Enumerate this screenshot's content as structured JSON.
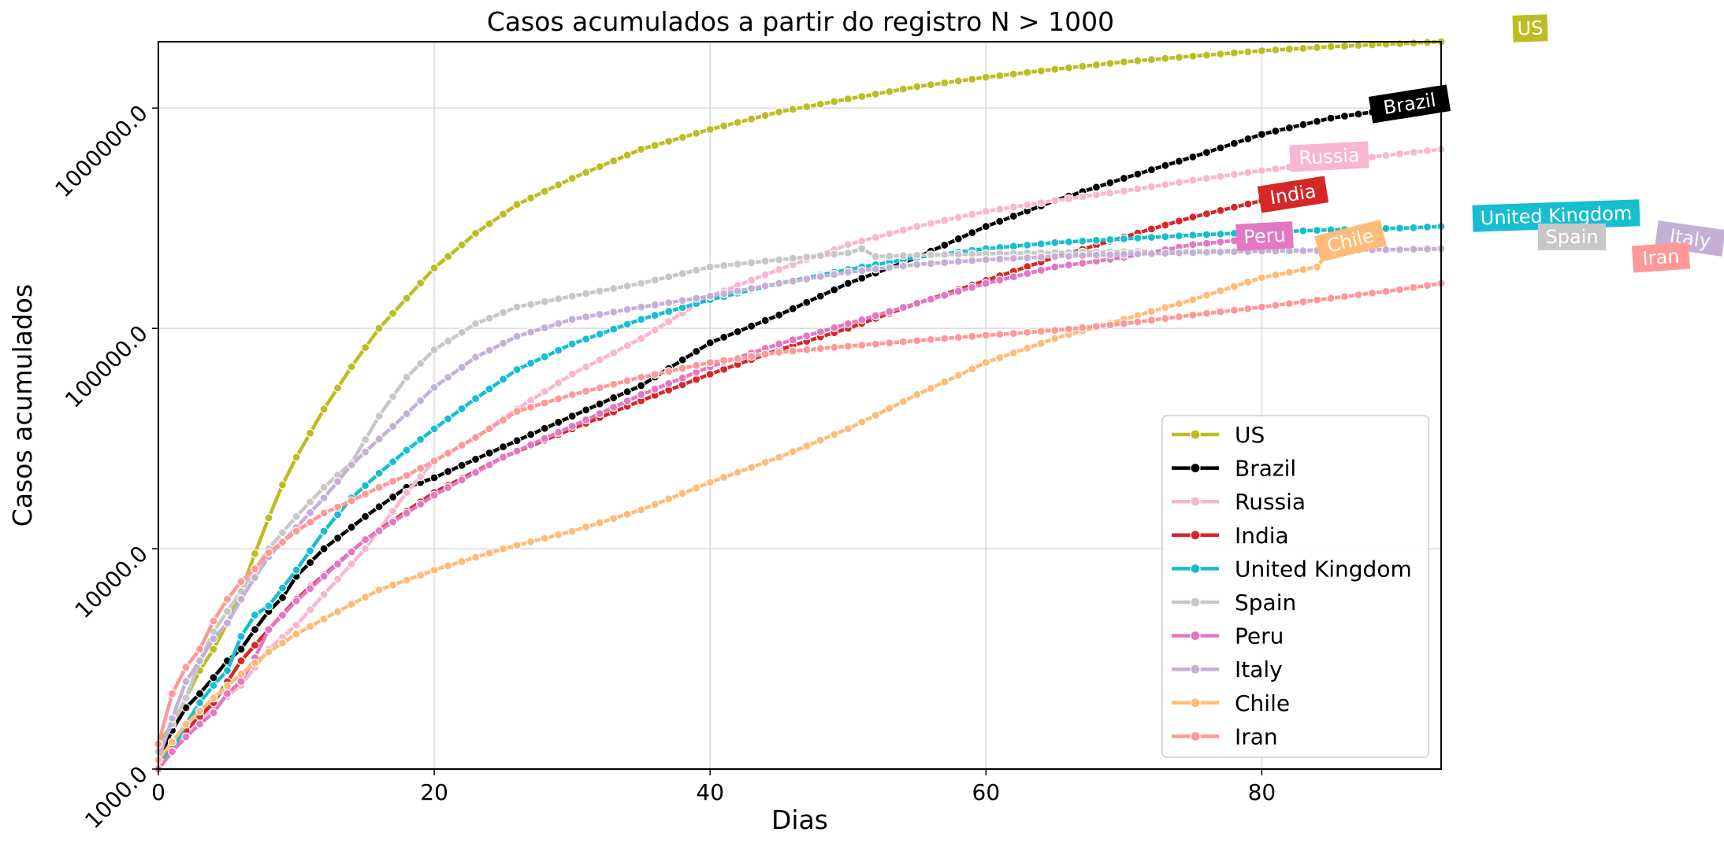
{
  "chart_data": {
    "type": "line",
    "title": "Casos acumulados a partir do registro N > 1000",
    "xlabel": "Dias",
    "ylabel": "Casos acumulados",
    "x_scale": "linear",
    "y_scale": "log",
    "xlim": [
      0,
      93
    ],
    "ylim": [
      1000,
      2000000
    ],
    "x_ticks": [
      0,
      20,
      40,
      60,
      80
    ],
    "x_tick_labels": [
      "0",
      "20",
      "40",
      "60",
      "80"
    ],
    "y_ticks": [
      1000,
      10000,
      100000,
      1000000
    ],
    "y_tick_labels": [
      "1000.0",
      "10000.0",
      "100000.0",
      "1000000.0"
    ],
    "grid": true,
    "legend_position": "lower-right",
    "series": [
      {
        "name": "US",
        "color": "#bcbd22",
        "tag": "US",
        "x": [
          0,
          1,
          2,
          3,
          4,
          5,
          6,
          7,
          8,
          9,
          10,
          12,
          14,
          16,
          18,
          20,
          23,
          26,
          30,
          35,
          40,
          45,
          50,
          55,
          60,
          65,
          70,
          75,
          80,
          85,
          90,
          93
        ],
        "y": [
          1300,
          1600,
          2100,
          2800,
          3500,
          4600,
          6400,
          9500,
          13800,
          19500,
          26000,
          43000,
          67000,
          100000,
          137000,
          188000,
          270000,
          365000,
          480000,
          650000,
          800000,
          960000,
          1100000,
          1250000,
          1380000,
          1500000,
          1620000,
          1720000,
          1820000,
          1900000,
          1960000,
          2000000
        ]
      },
      {
        "name": "Brazil",
        "color": "#000000",
        "tag": "Brazil",
        "x": [
          0,
          1,
          2,
          3,
          4,
          5,
          6,
          7,
          8,
          9,
          10,
          12,
          15,
          18,
          20,
          25,
          30,
          35,
          40,
          45,
          50,
          55,
          60,
          65,
          70,
          75,
          80,
          85,
          90,
          93
        ],
        "y": [
          1100,
          1500,
          1900,
          2200,
          2600,
          3100,
          3500,
          4300,
          5200,
          6000,
          7500,
          10000,
          14000,
          19000,
          21000,
          29000,
          40000,
          55000,
          86000,
          115000,
          160000,
          210000,
          290000,
          380000,
          480000,
          600000,
          760000,
          900000,
          1000000,
          1050000
        ]
      },
      {
        "name": "Russia",
        "color": "#f7b6d2",
        "tag": "Russia",
        "x": [
          0,
          2,
          4,
          6,
          8,
          10,
          12,
          15,
          18,
          20,
          23,
          26,
          30,
          35,
          40,
          45,
          50,
          55,
          60,
          65,
          70,
          75,
          80,
          85,
          90,
          93
        ],
        "y": [
          1100,
          1500,
          1900,
          2400,
          3500,
          4500,
          6200,
          10000,
          18000,
          25000,
          32000,
          43000,
          62000,
          90000,
          140000,
          185000,
          240000,
          290000,
          340000,
          380000,
          420000,
          470000,
          520000,
          570000,
          620000,
          650000
        ]
      },
      {
        "name": "India",
        "color": "#d62728",
        "tag": "India",
        "x": [
          0,
          2,
          4,
          6,
          8,
          10,
          12,
          15,
          18,
          20,
          25,
          30,
          35,
          40,
          45,
          50,
          55,
          60,
          65,
          70,
          75,
          80,
          82
        ],
        "y": [
          1100,
          1500,
          2000,
          3100,
          4300,
          5900,
          7600,
          11000,
          14800,
          18000,
          26000,
          35000,
          47000,
          62000,
          80000,
          100000,
          130000,
          165000,
          210000,
          260000,
          320000,
          380000,
          400000
        ]
      },
      {
        "name": "United Kingdom",
        "color": "#17becf",
        "tag": "United Kingdom",
        "x": [
          0,
          1,
          2,
          3,
          4,
          5,
          6,
          7,
          8,
          10,
          12,
          14,
          16,
          18,
          20,
          23,
          26,
          30,
          35,
          40,
          45,
          50,
          55,
          60,
          65,
          70,
          75,
          80,
          85,
          90,
          93
        ],
        "y": [
          1100,
          1200,
          1600,
          2000,
          2400,
          2800,
          4000,
          5000,
          5500,
          8000,
          12000,
          17000,
          22000,
          28000,
          35000,
          48000,
          65000,
          85000,
          110000,
          135000,
          160000,
          185000,
          210000,
          230000,
          245000,
          255000,
          265000,
          273000,
          280000,
          285000,
          290000
        ]
      },
      {
        "name": "Spain",
        "color": "#c7c7c7",
        "tag": "Spain",
        "x": [
          0,
          1,
          2,
          3,
          4,
          5,
          6,
          7,
          8,
          10,
          12,
          14,
          16,
          18,
          20,
          23,
          26,
          30,
          35,
          40,
          45,
          50,
          51,
          52,
          55,
          60,
          65,
          70,
          75,
          80,
          85,
          90,
          93
        ],
        "y": [
          1200,
          1600,
          2100,
          3100,
          4200,
          5200,
          6400,
          8000,
          10000,
          14000,
          19000,
          24500,
          40000,
          60000,
          80000,
          105000,
          125000,
          140000,
          160000,
          190000,
          205000,
          220000,
          230000,
          212000,
          215000,
          218000,
          221000,
          223000,
          225000,
          226000,
          227000,
          228000,
          229000
        ]
      },
      {
        "name": "Peru",
        "color": "#e377c2",
        "tag": "Peru",
        "x": [
          0,
          1,
          2,
          3,
          4,
          5,
          6,
          7,
          8,
          10,
          12,
          15,
          18,
          20,
          25,
          30,
          35,
          40,
          45,
          50,
          55,
          60,
          65,
          70,
          75,
          78
        ],
        "y": [
          1000,
          1200,
          1400,
          1600,
          1800,
          2200,
          2500,
          3200,
          4300,
          5800,
          7500,
          11000,
          14500,
          17500,
          26000,
          36000,
          50000,
          67000,
          85000,
          105000,
          130000,
          160000,
          190000,
          210000,
          240000,
          250000
        ]
      },
      {
        "name": "Italy",
        "color": "#c5b0d5",
        "tag": "Italy",
        "x": [
          0,
          1,
          2,
          3,
          4,
          5,
          6,
          7,
          8,
          10,
          12,
          14,
          16,
          18,
          20,
          23,
          26,
          30,
          35,
          40,
          45,
          50,
          55,
          60,
          65,
          70,
          75,
          80,
          85,
          90,
          93
        ],
        "y": [
          1100,
          1700,
          2500,
          3100,
          3900,
          4600,
          5900,
          7400,
          9200,
          12500,
          17000,
          24000,
          31500,
          41000,
          54000,
          74000,
          92000,
          110000,
          125000,
          140000,
          160000,
          180000,
          195000,
          205000,
          212000,
          217000,
          221000,
          224000,
          226000,
          228000,
          230000
        ]
      },
      {
        "name": "Chile",
        "color": "#ffbb78",
        "tag": "Chile",
        "x": [
          0,
          2,
          4,
          6,
          8,
          10,
          12,
          14,
          16,
          18,
          20,
          25,
          30,
          35,
          40,
          45,
          50,
          55,
          60,
          65,
          70,
          75,
          80,
          84,
          85
        ],
        "y": [
          1100,
          1600,
          2100,
          2700,
          3400,
          4100,
          4800,
          5600,
          6500,
          7200,
          8000,
          10000,
          12000,
          15000,
          20000,
          26000,
          35000,
          50000,
          70000,
          90000,
          110000,
          135000,
          170000,
          190000,
          230000
        ]
      },
      {
        "name": "Iran",
        "color": "#ff9896",
        "tag": "Iran",
        "x": [
          0,
          1,
          2,
          3,
          4,
          5,
          6,
          7,
          8,
          10,
          12,
          14,
          16,
          18,
          20,
          23,
          26,
          30,
          35,
          40,
          45,
          50,
          55,
          60,
          65,
          70,
          75,
          80,
          85,
          90,
          93
        ],
        "y": [
          1300,
          2200,
          2900,
          3500,
          4700,
          5900,
          7100,
          8100,
          9600,
          12000,
          14500,
          16500,
          19000,
          21500,
          25000,
          32000,
          42000,
          50000,
          60000,
          70000,
          78000,
          83000,
          88000,
          93000,
          98000,
          105000,
          115000,
          125000,
          137000,
          150000,
          160000
        ]
      }
    ]
  }
}
